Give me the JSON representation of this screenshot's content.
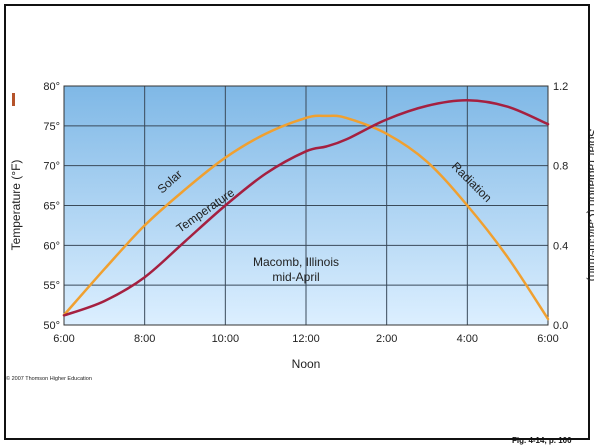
{
  "chart_data": {
    "type": "line",
    "x_tick_labels": [
      "6:00",
      "8:00",
      "10:00",
      "12:00",
      "2:00",
      "4:00",
      "6:00"
    ],
    "x_ticks": [
      6,
      8,
      10,
      12,
      14,
      16,
      18
    ],
    "xlim": [
      6,
      18
    ],
    "xlabel": "Noon",
    "left_axis": {
      "label": "Temperature (°F)",
      "ylim": [
        50,
        80
      ],
      "tick_labels": [
        "50°",
        "55°",
        "60°",
        "65°",
        "70°",
        "75°",
        "80°"
      ],
      "ticks": [
        50,
        55,
        60,
        65,
        70,
        75,
        80
      ]
    },
    "right_axis": {
      "label": "Solar radiation (Cal/cm²/min)",
      "ylim": [
        0,
        1.2
      ],
      "tick_labels": [
        "0.0",
        "0.4",
        "0.8",
        "1.2"
      ],
      "ticks": [
        0,
        0.4,
        0.8,
        1.2
      ]
    },
    "grid": true,
    "series": [
      {
        "name": "Solar",
        "label_extra": "Radiation",
        "axis": "right",
        "color": "#f0a030",
        "x": [
          6,
          7,
          8,
          9,
          10,
          11,
          12,
          12.5,
          13,
          14,
          15,
          16,
          17,
          18
        ],
        "y": [
          0.05,
          0.28,
          0.5,
          0.68,
          0.84,
          0.96,
          1.04,
          1.05,
          1.04,
          0.96,
          0.82,
          0.6,
          0.34,
          0.03
        ]
      },
      {
        "name": "Temperature",
        "axis": "left",
        "color": "#a52040",
        "x": [
          6,
          7,
          8,
          9,
          10,
          11,
          12,
          12.5,
          13,
          14,
          15,
          16,
          17,
          18
        ],
        "y": [
          51.2,
          53.0,
          56.0,
          60.5,
          65.0,
          69.0,
          71.8,
          72.4,
          73.3,
          75.8,
          77.5,
          78.2,
          77.4,
          75.2
        ]
      }
    ],
    "annotations": [
      "Macomb, Illinois",
      "mid-April"
    ],
    "background": "#8ec3ea"
  },
  "copyright": "© 2007 Thomson Higher Education",
  "fig_label": "Fig. 4-14, p. 100"
}
